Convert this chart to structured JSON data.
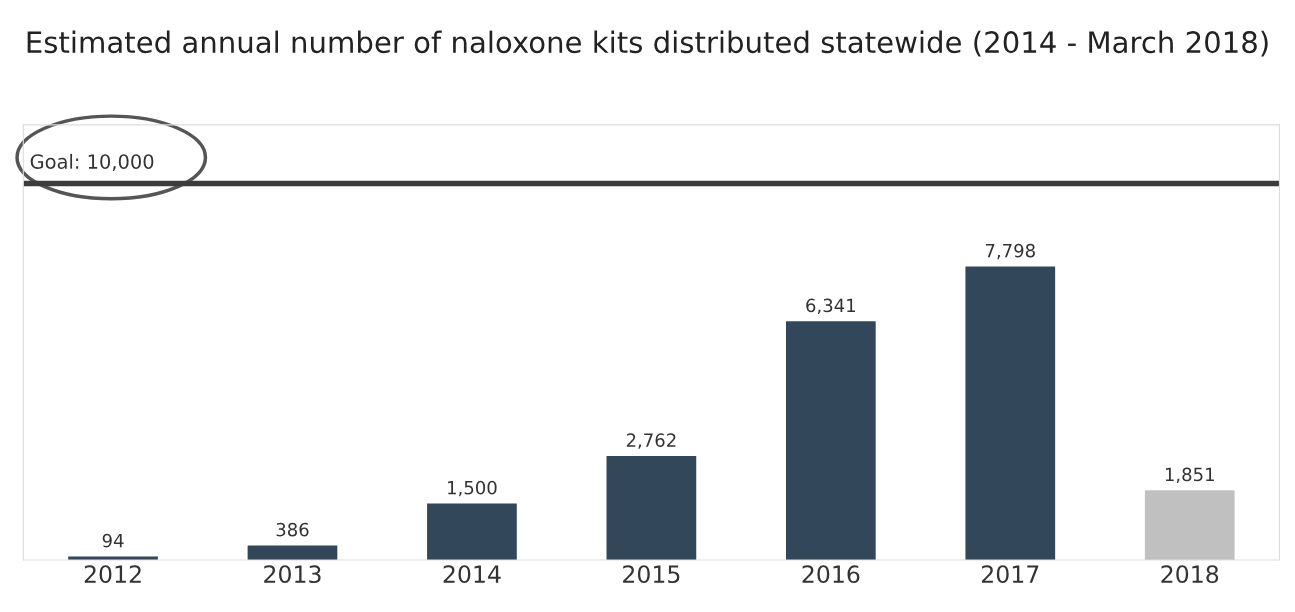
{
  "chart_data": {
    "type": "bar",
    "title": "Estimated annual number of naloxone kits distributed statewide (2014 - March 2018)",
    "categories": [
      "2012",
      "2013",
      "2014",
      "2015",
      "2016",
      "2017",
      "2018"
    ],
    "values": [
      94,
      386,
      1500,
      2762,
      6341,
      7798,
      1851
    ],
    "colors": [
      "#33475b",
      "#33475b",
      "#33475b",
      "#33475b",
      "#33475b",
      "#33475b",
      "#c0c0c0"
    ],
    "ylim": [
      0,
      11560
    ],
    "tick_labels": "x",
    "value_labels": [
      "94",
      "386",
      "1,500",
      "2,762",
      "6,341",
      "7,798",
      "1,851"
    ],
    "grid": false,
    "ref_lines": [
      {
        "axis": "y",
        "value": 10000,
        "label": "Goal: 10,000",
        "color": "#3c3c3c"
      }
    ]
  }
}
